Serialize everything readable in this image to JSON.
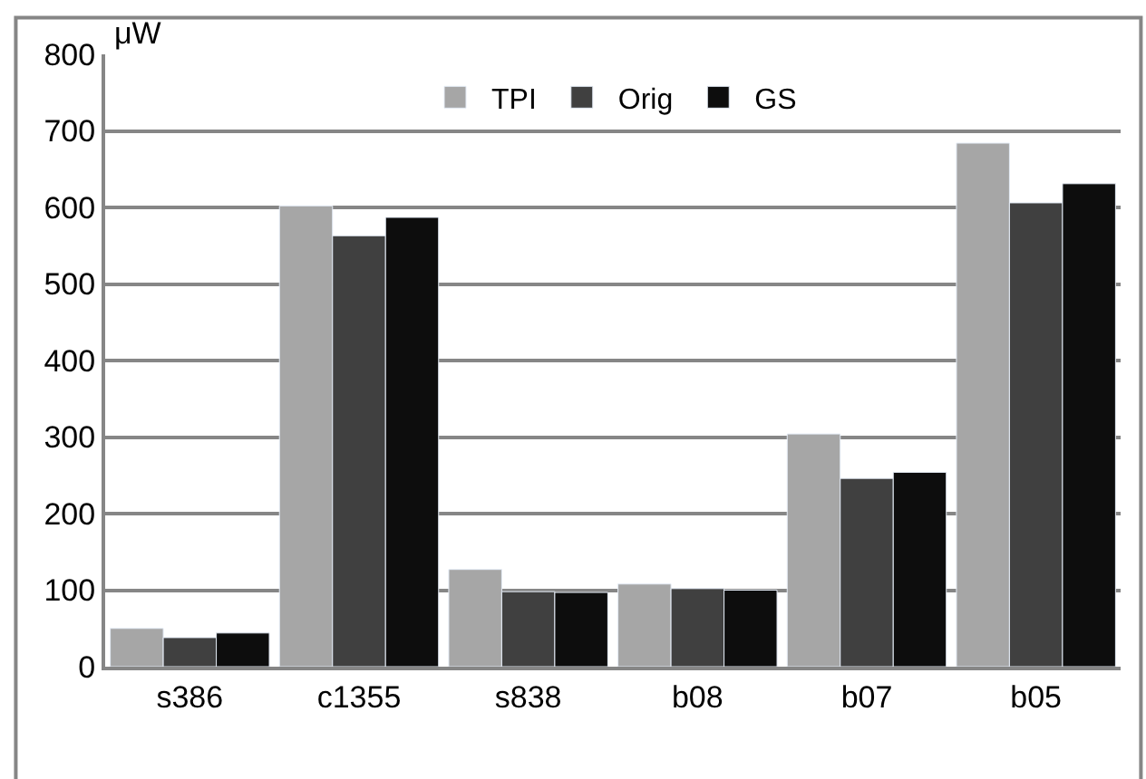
{
  "chart_data": {
    "type": "bar",
    "ylabel": "μW",
    "categories": [
      "s386",
      "c1355",
      "s838",
      "b08",
      "b07",
      "b05"
    ],
    "series": [
      {
        "name": "TPI",
        "color": "#a6a6a6",
        "values": [
          50,
          602,
          127,
          108,
          304,
          684
        ]
      },
      {
        "name": "Orig",
        "color": "#404040",
        "values": [
          38,
          563,
          98,
          102,
          246,
          606
        ]
      },
      {
        "name": "GS",
        "color": "#0d0d0d",
        "values": [
          44,
          587,
          97,
          100,
          254,
          631
        ]
      }
    ],
    "ylim": [
      0,
      800
    ],
    "yticks": [
      0,
      100,
      200,
      300,
      400,
      500,
      600,
      700,
      800
    ],
    "grid": "y",
    "legend": "top"
  }
}
